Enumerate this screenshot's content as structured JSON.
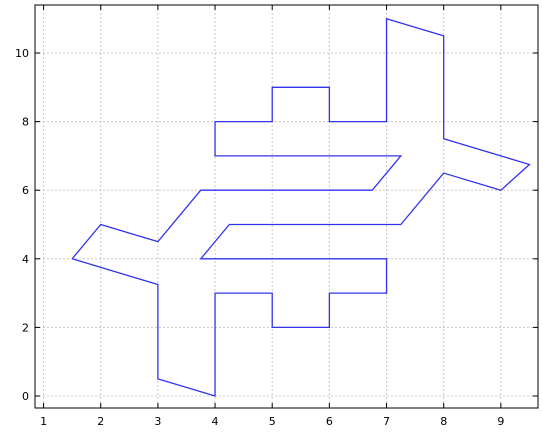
{
  "chart_data": {
    "type": "line",
    "title": "",
    "xlabel": "",
    "ylabel": "",
    "xlim": [
      0.85,
      9.65
    ],
    "ylim": [
      -0.35,
      11.4
    ],
    "xticks": [
      1,
      2,
      3,
      4,
      5,
      6,
      7,
      8,
      9
    ],
    "yticks": [
      0,
      2,
      4,
      6,
      8,
      10
    ],
    "xtick_labels": [
      "1",
      "2",
      "3",
      "4",
      "5",
      "6",
      "7",
      "8",
      "9"
    ],
    "ytick_labels": [
      "0",
      "2",
      "4",
      "6",
      "8",
      "10"
    ],
    "grid": true,
    "line_color": "#3333ee",
    "series": [
      {
        "x": [
          1.5,
          3.0,
          3.0,
          4.0,
          4.0,
          5.0,
          5.0,
          6.0,
          6.0,
          7.0,
          7.0,
          3.75,
          4.25,
          7.25,
          8.0,
          9.0,
          9.5,
          8.0,
          8.0,
          7.0,
          7.0,
          6.0,
          6.0,
          5.0,
          5.0,
          4.0,
          4.0,
          7.25,
          6.75,
          3.75,
          3.0,
          2.0,
          1.5
        ],
        "y": [
          4.0,
          3.25,
          0.5,
          0.0,
          3.0,
          3.0,
          2.0,
          2.0,
          3.0,
          3.0,
          4.0,
          4.0,
          5.0,
          5.0,
          6.5,
          6.0,
          6.75,
          7.5,
          10.5,
          11.0,
          8.0,
          8.0,
          9.0,
          9.0,
          8.0,
          8.0,
          7.0,
          7.0,
          6.0,
          6.0,
          4.5,
          5.0,
          4.0
        ]
      }
    ]
  }
}
